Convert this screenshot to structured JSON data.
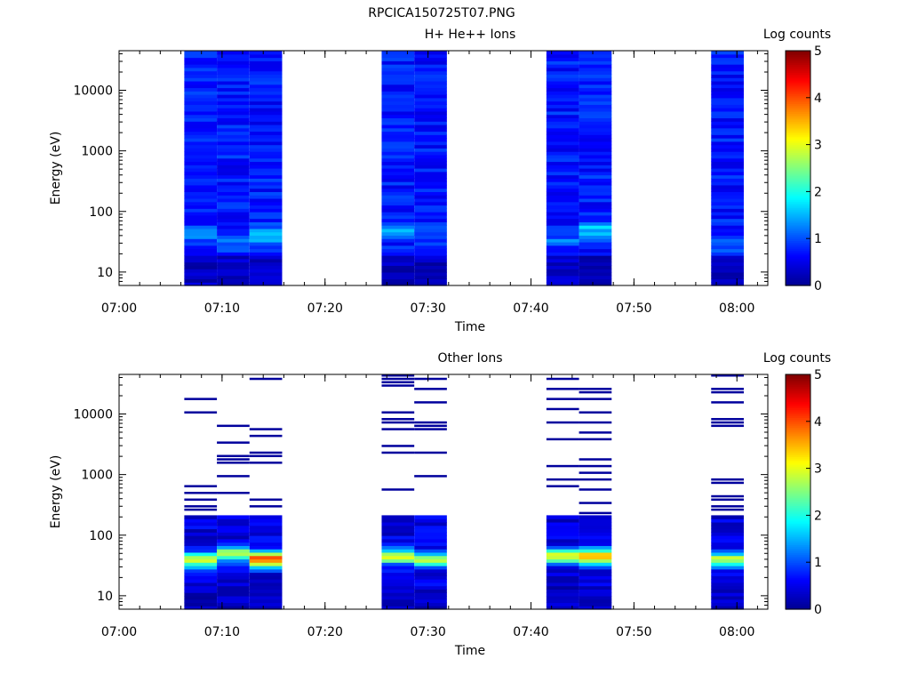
{
  "figure_title": "RPCICA150725T07.PNG",
  "colors": {
    "background": "#ffffff",
    "axis": "#000000",
    "colormap": [
      "#00008f",
      "#0000ff",
      "#0080ff",
      "#00ffff",
      "#80ff80",
      "#ffff00",
      "#ff8000",
      "#ff0000",
      "#800000"
    ]
  },
  "chart_data": [
    {
      "type": "heatmap",
      "title": "H+ He++ Ions",
      "xlabel": "Time",
      "ylabel": "Energy (eV)",
      "yscale": "log",
      "ylim": [
        6,
        45000
      ],
      "xlim": [
        "07:00",
        "08:03"
      ],
      "xticks": [
        "07:00",
        "07:10",
        "07:20",
        "07:30",
        "07:40",
        "07:50",
        "08:00"
      ],
      "yticks": [
        "10",
        "100",
        "1000",
        "10000"
      ],
      "colorbar": {
        "label": "Log counts",
        "range": [
          0,
          5
        ],
        "ticks": [
          "0",
          "1",
          "2",
          "3",
          "4",
          "5"
        ]
      },
      "time_bins": [
        {
          "start": "07:06:20",
          "end": "07:09:30",
          "pattern": "dense",
          "peak_log_counts": 1.4,
          "peak_energy_eV": 40
        },
        {
          "start": "07:09:30",
          "end": "07:12:40",
          "pattern": "dense",
          "peak_log_counts": 1.3,
          "peak_energy_eV": 35
        },
        {
          "start": "07:12:40",
          "end": "07:15:50",
          "pattern": "dense",
          "peak_log_counts": 1.9,
          "peak_energy_eV": 40
        },
        {
          "start": "07:25:30",
          "end": "07:28:40",
          "pattern": "dense",
          "peak_log_counts": 1.5,
          "peak_energy_eV": 50
        },
        {
          "start": "07:28:40",
          "end": "07:31:50",
          "pattern": "dense",
          "peak_log_counts": 1.3,
          "peak_energy_eV": 45
        },
        {
          "start": "07:41:30",
          "end": "07:44:40",
          "pattern": "dense",
          "peak_log_counts": 1.3,
          "peak_energy_eV": 35
        },
        {
          "start": "07:44:40",
          "end": "07:47:50",
          "pattern": "dense",
          "peak_log_counts": 1.8,
          "peak_energy_eV": 50
        },
        {
          "start": "07:57:30",
          "end": "08:00:40",
          "pattern": "dense",
          "peak_log_counts": 1.3,
          "peak_energy_eV": 30
        }
      ]
    },
    {
      "type": "heatmap",
      "title": "Other Ions",
      "xlabel": "Time",
      "ylabel": "Energy (eV)",
      "yscale": "log",
      "ylim": [
        6,
        45000
      ],
      "xlim": [
        "07:00",
        "08:03"
      ],
      "xticks": [
        "07:00",
        "07:10",
        "07:20",
        "07:30",
        "07:40",
        "07:50",
        "08:00"
      ],
      "yticks": [
        "10",
        "100",
        "1000",
        "10000"
      ],
      "colorbar": {
        "label": "Log counts",
        "range": [
          0,
          5
        ],
        "ticks": [
          "0",
          "1",
          "2",
          "3",
          "4",
          "5"
        ]
      },
      "time_bins": [
        {
          "start": "07:06:20",
          "end": "07:09:30",
          "pattern": "sparse",
          "peak_log_counts": 3.2,
          "peak_energy_eV": 40
        },
        {
          "start": "07:09:30",
          "end": "07:12:40",
          "pattern": "sparse",
          "peak_log_counts": 3.1,
          "peak_energy_eV": 50
        },
        {
          "start": "07:12:40",
          "end": "07:15:50",
          "pattern": "sparse",
          "peak_log_counts": 4.2,
          "peak_energy_eV": 40
        },
        {
          "start": "07:25:30",
          "end": "07:28:40",
          "pattern": "sparse",
          "peak_log_counts": 3.1,
          "peak_energy_eV": 45
        },
        {
          "start": "07:28:40",
          "end": "07:31:50",
          "pattern": "sparse",
          "peak_log_counts": 2.9,
          "peak_energy_eV": 40
        },
        {
          "start": "07:41:30",
          "end": "07:44:40",
          "pattern": "sparse",
          "peak_log_counts": 3.2,
          "peak_energy_eV": 45
        },
        {
          "start": "07:44:40",
          "end": "07:47:50",
          "pattern": "sparse",
          "peak_log_counts": 3.9,
          "peak_energy_eV": 45
        },
        {
          "start": "07:57:30",
          "end": "08:00:40",
          "pattern": "sparse",
          "peak_log_counts": 3.0,
          "peak_energy_eV": 40
        }
      ]
    }
  ]
}
